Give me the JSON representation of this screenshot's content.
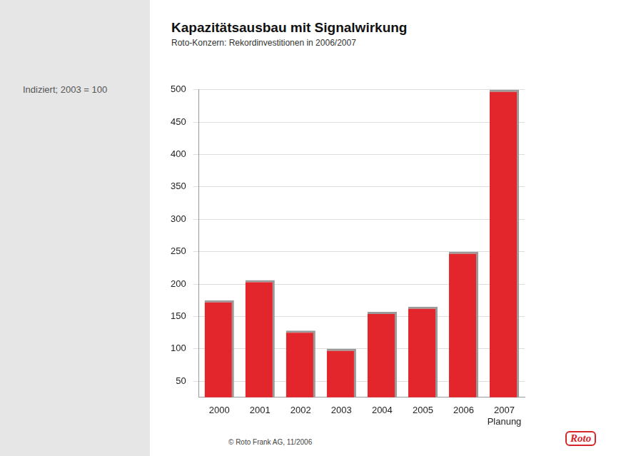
{
  "chart_data": {
    "type": "bar",
    "title": "Kapazitätsausbau mit Signalwirkung",
    "subtitle": "Roto-Konzern: Rekordinvestitionen in 2006/2007",
    "ylabel": "Indiziert; 2003 = 100",
    "categories": [
      "2000",
      "2001",
      "2002",
      "2003",
      "2004",
      "2005",
      "2006",
      "2007 Planung"
    ],
    "values": [
      175,
      206,
      128,
      100,
      157,
      165,
      250,
      500
    ],
    "color": "#e3262b",
    "ylim": [
      25,
      500
    ],
    "yticks": [
      50,
      100,
      150,
      200,
      250,
      300,
      350,
      400,
      450,
      500
    ],
    "grid": true,
    "source": "© Roto Frank AG, 11/2006",
    "logo": "Roto"
  }
}
